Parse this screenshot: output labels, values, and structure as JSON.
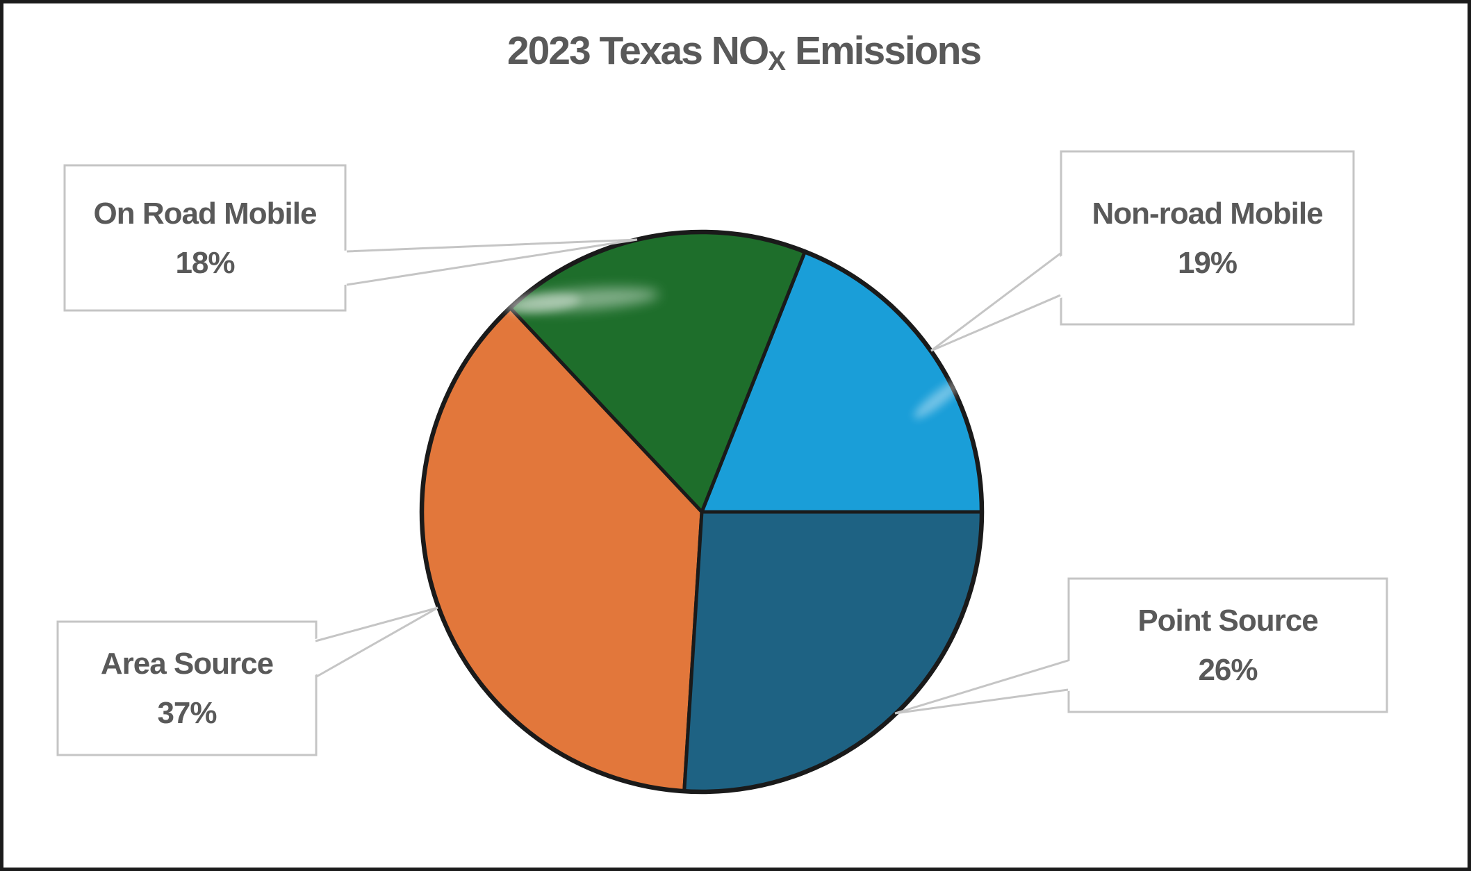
{
  "title": {
    "prefix": "2023 Texas NO",
    "sub": "X",
    "suffix": " Emissions",
    "color": "#595959"
  },
  "callouts": {
    "on_road": {
      "label": "On Road Mobile",
      "value": "18%"
    },
    "non_road": {
      "label": "Non-road Mobile",
      "value": "19%"
    },
    "area": {
      "label": "Area Source",
      "value": "37%"
    },
    "point": {
      "label": "Point Source",
      "value": "26%"
    }
  },
  "colors": {
    "text_gray": "#595959",
    "callout_border": "#C5C5C5",
    "pie_outline": "#1a1a1a",
    "background": "#ffffff"
  },
  "chart_data": {
    "type": "pie",
    "title": "2023 Texas NOx Emissions",
    "slices": [
      {
        "label": "Non-road Mobile",
        "value": 19,
        "color": "#1A9ED8"
      },
      {
        "label": "On Road Mobile",
        "value": 18,
        "color": "#1E6E2B"
      },
      {
        "label": "Area Source",
        "value": 37,
        "color": "#E2773B"
      },
      {
        "label": "Point Source",
        "value": 26,
        "color": "#1E6283"
      }
    ],
    "start_angle_deg": 0,
    "direction": "counterclockwise",
    "stroke_color": "#1a1a1a",
    "callout_line_color": "#C5C5C5",
    "legend": "none",
    "labels_as_callouts": true
  }
}
